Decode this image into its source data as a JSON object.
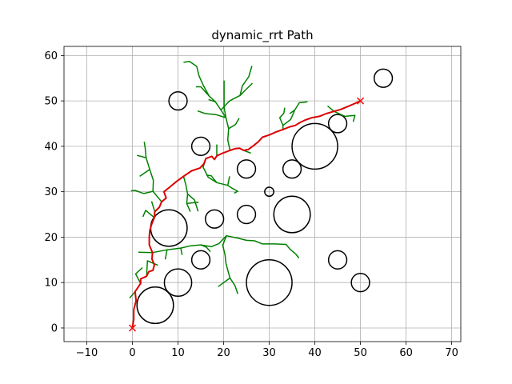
{
  "chart_data": {
    "type": "scatter",
    "title": "dynamic_rrt Path",
    "xlabel": "",
    "ylabel": "",
    "xlim": [
      -15,
      72
    ],
    "ylim": [
      -3,
      62
    ],
    "xticks": [
      -10,
      0,
      10,
      20,
      30,
      40,
      50,
      60,
      70
    ],
    "yticks": [
      0,
      10,
      20,
      30,
      40,
      50,
      60
    ],
    "grid": true,
    "colors": {
      "tree": "#008000",
      "path": "#dd0000",
      "obstacle": "#000000",
      "marker": "#ff0000"
    },
    "start": [
      0,
      0
    ],
    "goal": [
      50,
      50
    ],
    "obstacles": [
      {
        "x": 5,
        "y": 5,
        "r": 4
      },
      {
        "x": 10,
        "y": 10,
        "r": 3
      },
      {
        "x": 8,
        "y": 22,
        "r": 4
      },
      {
        "x": 10,
        "y": 50,
        "r": 2
      },
      {
        "x": 15,
        "y": 15,
        "r": 2
      },
      {
        "x": 15,
        "y": 40,
        "r": 2
      },
      {
        "x": 18,
        "y": 24,
        "r": 2
      },
      {
        "x": 25,
        "y": 25,
        "r": 2
      },
      {
        "x": 25,
        "y": 35,
        "r": 2
      },
      {
        "x": 30,
        "y": 10,
        "r": 5
      },
      {
        "x": 30,
        "y": 30,
        "r": 1
      },
      {
        "x": 35,
        "y": 25,
        "r": 4
      },
      {
        "x": 35,
        "y": 35,
        "r": 2
      },
      {
        "x": 40,
        "y": 40,
        "r": 5
      },
      {
        "x": 45,
        "y": 15,
        "r": 2
      },
      {
        "x": 45,
        "y": 45,
        "r": 2
      },
      {
        "x": 50,
        "y": 10,
        "r": 2
      },
      {
        "x": 55,
        "y": 55,
        "r": 2
      }
    ],
    "path": [
      [
        0,
        0
      ],
      [
        0.3,
        2
      ],
      [
        0.3,
        4
      ],
      [
        0.8,
        6
      ],
      [
        0.6,
        8
      ],
      [
        1.8,
        9.8
      ],
      [
        1.8,
        10.8
      ],
      [
        3.1,
        11.4
      ],
      [
        3.6,
        12.4
      ],
      [
        4.5,
        12.7
      ],
      [
        4.8,
        13.9
      ],
      [
        4.3,
        15.2
      ],
      [
        4.4,
        16.6
      ],
      [
        3.7,
        18.3
      ],
      [
        3.7,
        20.1
      ],
      [
        3.8,
        21.4
      ],
      [
        4.2,
        22.8
      ],
      [
        4.8,
        24.3
      ],
      [
        4.9,
        25.6
      ],
      [
        5.9,
        26.6
      ],
      [
        6.4,
        27.8
      ],
      [
        7.4,
        28.6
      ],
      [
        6.9,
        30
      ],
      [
        8.3,
        31.1
      ],
      [
        9.6,
        32.2
      ],
      [
        11.2,
        33.4
      ],
      [
        13,
        34.6
      ],
      [
        14.8,
        35.2
      ],
      [
        15.7,
        36.2
      ],
      [
        16.1,
        37.3
      ],
      [
        17.4,
        37.8
      ],
      [
        18,
        37.1
      ],
      [
        18.5,
        37.9
      ],
      [
        19.8,
        38.5
      ],
      [
        21.4,
        39.1
      ],
      [
        22.6,
        39.5
      ],
      [
        23.5,
        39.6
      ],
      [
        24.4,
        39.1
      ],
      [
        25.4,
        39.3
      ],
      [
        26.6,
        40.2
      ],
      [
        27.6,
        41
      ],
      [
        28.5,
        42
      ],
      [
        30,
        42.5
      ],
      [
        31.6,
        43.2
      ],
      [
        33,
        43.7
      ],
      [
        34.5,
        44.3
      ],
      [
        35.7,
        44.6
      ],
      [
        36.7,
        45.2
      ],
      [
        37.9,
        45.8
      ],
      [
        39.4,
        46.3
      ],
      [
        41,
        46.6
      ],
      [
        42.5,
        47.2
      ],
      [
        44.2,
        47.7
      ],
      [
        45.6,
        48.1
      ],
      [
        47.3,
        48.8
      ],
      [
        48.7,
        49.4
      ],
      [
        50,
        50
      ]
    ],
    "tree": [
      [
        [
          1.8,
          9.8
        ],
        [
          0.7,
          11.9
        ],
        [
          2.2,
          13.3
        ]
      ],
      [
        [
          3.1,
          11.4
        ],
        [
          3.3,
          14.8
        ],
        [
          5.6,
          13.8
        ]
      ],
      [
        [
          0.6,
          8
        ],
        [
          -0.6,
          6.6
        ]
      ],
      [
        [
          4.4,
          16.6
        ],
        [
          7.6,
          17.2
        ],
        [
          10.6,
          17.6
        ],
        [
          12.8,
          18.1
        ],
        [
          15,
          18.3
        ],
        [
          17.3,
          17.9
        ],
        [
          19,
          18.6
        ],
        [
          20.6,
          20.3
        ],
        [
          23.1,
          19.8
        ],
        [
          25,
          19.3
        ],
        [
          26.8,
          19.2
        ],
        [
          28.5,
          18.5
        ],
        [
          31.2,
          18.5
        ],
        [
          33.7,
          18.4
        ],
        [
          34.6,
          17.3
        ],
        [
          35.8,
          16.3
        ],
        [
          36.5,
          15.4
        ]
      ],
      [
        [
          15,
          18.3
        ],
        [
          16.2,
          17.8
        ],
        [
          17.1,
          16.8
        ]
      ],
      [
        [
          10.6,
          17.6
        ],
        [
          10.9,
          16.1
        ]
      ],
      [
        [
          7.6,
          17.2
        ],
        [
          7.2,
          15.1
        ]
      ],
      [
        [
          4.4,
          16.6
        ],
        [
          1.3,
          16.7
        ]
      ],
      [
        [
          20.6,
          20.3
        ],
        [
          19.8,
          18.2
        ],
        [
          20.3,
          16.1
        ],
        [
          20.5,
          14.3
        ],
        [
          21,
          12.4
        ],
        [
          21.4,
          11
        ],
        [
          22.5,
          9.3
        ],
        [
          23.1,
          7.5
        ]
      ],
      [
        [
          21.4,
          11
        ],
        [
          18.8,
          9.1
        ]
      ],
      [
        [
          4.8,
          24.3
        ],
        [
          2.9,
          25.9
        ],
        [
          2.3,
          24.5
        ]
      ],
      [
        [
          4.9,
          25.6
        ],
        [
          4.2,
          27.9
        ]
      ],
      [
        [
          6.4,
          27.8
        ],
        [
          4.5,
          30.1
        ],
        [
          2.5,
          29.6
        ],
        [
          0.6,
          30.3
        ],
        [
          -0.3,
          30.2
        ]
      ],
      [
        [
          4.5,
          30.1
        ],
        [
          4.6,
          32.5
        ],
        [
          3.8,
          34.9
        ],
        [
          3,
          37.5
        ],
        [
          1,
          38
        ]
      ],
      [
        [
          3.8,
          34.9
        ],
        [
          1.6,
          33.4
        ]
      ],
      [
        [
          3,
          37.5
        ],
        [
          2.8,
          39.6
        ],
        [
          2.6,
          41
        ]
      ],
      [
        [
          11.2,
          33.4
        ],
        [
          11.7,
          31.6
        ],
        [
          12.1,
          29.5
        ],
        [
          11.9,
          27.4
        ],
        [
          12.7,
          25.6
        ]
      ],
      [
        [
          12.1,
          29.5
        ],
        [
          13.6,
          28.2
        ],
        [
          14.4,
          25.7
        ]
      ],
      [
        [
          11.9,
          27.4
        ],
        [
          13.6,
          27.6
        ],
        [
          14.5,
          27.7
        ]
      ],
      [
        [
          16.1,
          37.3
        ],
        [
          15.5,
          35.4
        ],
        [
          16.6,
          33.2
        ],
        [
          18.5,
          32
        ],
        [
          20.9,
          31.4
        ],
        [
          22,
          30.7
        ],
        [
          23.1,
          30.1
        ],
        [
          22.3,
          29.7
        ]
      ],
      [
        [
          18.5,
          32
        ],
        [
          17.3,
          33.5
        ],
        [
          16.2,
          33.7
        ]
      ],
      [
        [
          20.9,
          31.4
        ],
        [
          21.3,
          33.4
        ]
      ],
      [
        [
          18.5,
          37.9
        ],
        [
          18.5,
          40.4
        ]
      ],
      [
        [
          21.4,
          39.1
        ],
        [
          20.9,
          41.4
        ],
        [
          21.1,
          43.9
        ],
        [
          20.5,
          46.3
        ],
        [
          19.4,
          48
        ],
        [
          18.2,
          49.8
        ],
        [
          16.8,
          51.1
        ],
        [
          15.6,
          53.3
        ],
        [
          14.6,
          55.5
        ],
        [
          14.1,
          57.6
        ],
        [
          12.5,
          58.7
        ],
        [
          11.2,
          58.5
        ]
      ],
      [
        [
          20.5,
          46.3
        ],
        [
          18.3,
          47
        ],
        [
          16,
          47.2
        ],
        [
          14.3,
          47.8
        ]
      ],
      [
        [
          18.2,
          49.8
        ],
        [
          16.7,
          50.3
        ]
      ],
      [
        [
          21.1,
          43.9
        ],
        [
          22.6,
          44.8
        ],
        [
          23.4,
          46.2
        ]
      ],
      [
        [
          19.4,
          48
        ],
        [
          21.3,
          50
        ],
        [
          23.6,
          51.2
        ],
        [
          24.1,
          53.3
        ],
        [
          25.5,
          55.3
        ],
        [
          26.2,
          57.7
        ]
      ],
      [
        [
          23.6,
          51.2
        ],
        [
          25,
          52.6
        ],
        [
          26.3,
          53.9
        ]
      ],
      [
        [
          16.8,
          51.1
        ],
        [
          15,
          53.1
        ],
        [
          13.9,
          53.1
        ]
      ],
      [
        [
          20.5,
          46.3
        ],
        [
          20.1,
          48.6
        ],
        [
          20.1,
          50.6
        ],
        [
          20.1,
          52.7
        ],
        [
          20.1,
          54.5
        ]
      ],
      [
        [
          33,
          43.7
        ],
        [
          33,
          44.6
        ],
        [
          32.3,
          46.3
        ],
        [
          33.2,
          47.3
        ],
        [
          33.4,
          48.5
        ]
      ],
      [
        [
          33,
          44.6
        ],
        [
          34.7,
          45.9
        ],
        [
          35.6,
          48
        ],
        [
          36.6,
          49.6
        ],
        [
          38.4,
          49.8
        ]
      ],
      [
        [
          35.6,
          48
        ],
        [
          34.5,
          47.2
        ]
      ],
      [
        [
          44.2,
          47.7
        ],
        [
          46.6,
          46.6
        ],
        [
          48.8,
          46.8
        ],
        [
          48.4,
          45.4
        ]
      ],
      [
        [
          44.2,
          47.7
        ],
        [
          42.8,
          48.9
        ]
      ],
      [
        [
          24.4,
          39.1
        ],
        [
          26,
          38.5
        ]
      ]
    ]
  }
}
